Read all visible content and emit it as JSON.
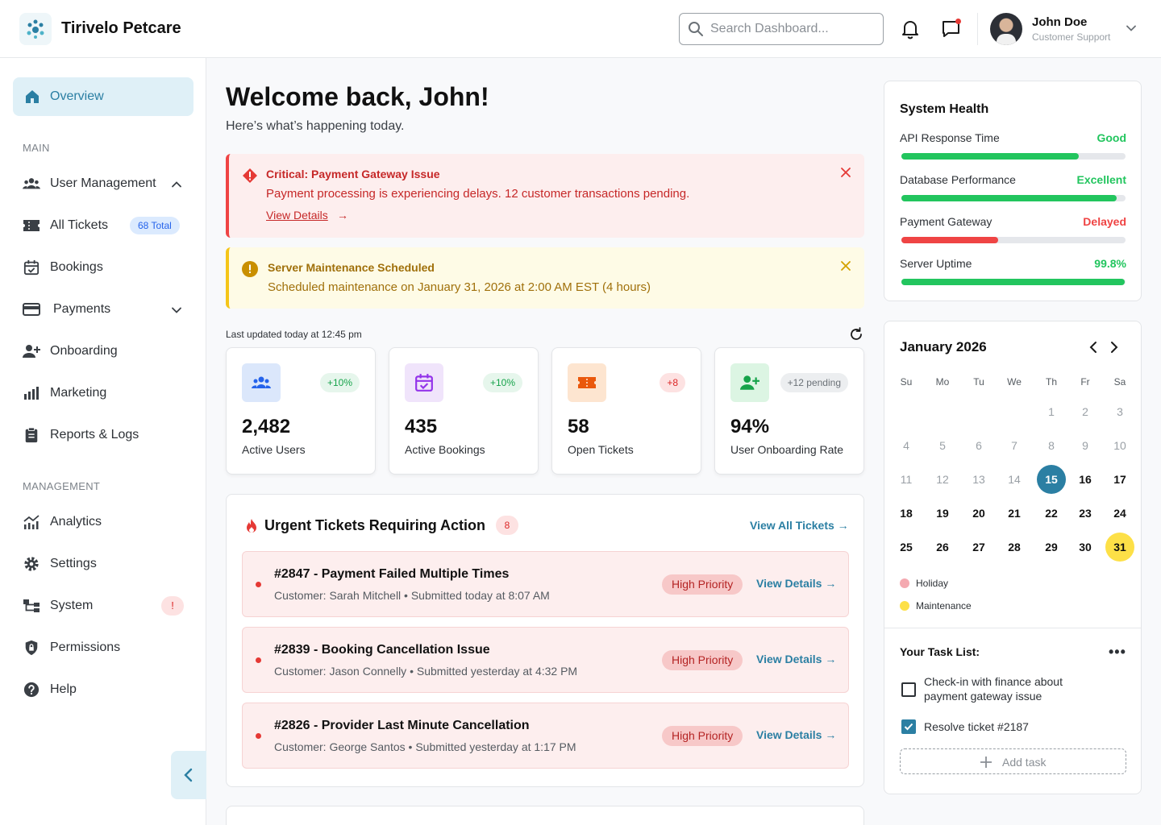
{
  "header": {
    "brand": "Tirivelo Petcare",
    "search_placeholder": "Search Dashboard...",
    "user_name": "John Doe",
    "user_role": "Customer Support"
  },
  "sidebar": {
    "overview": "Overview",
    "section_main": "MAIN",
    "section_management": "MANAGEMENT",
    "items_main": [
      {
        "label": "User Management",
        "icon": "users-icon"
      },
      {
        "label": "All Tickets",
        "icon": "ticket-icon",
        "badge": "68 Total"
      },
      {
        "label": "Bookings",
        "icon": "calendar-check-icon"
      },
      {
        "label": "Payments",
        "icon": "credit-card-icon"
      },
      {
        "label": "Onboarding",
        "icon": "user-plus-icon"
      },
      {
        "label": "Marketing",
        "icon": "bar-chart-icon"
      },
      {
        "label": "Reports & Logs",
        "icon": "clipboard-icon"
      }
    ],
    "items_management": [
      {
        "label": "Analytics",
        "icon": "analytics-icon"
      },
      {
        "label": "Settings",
        "icon": "gear-icon"
      },
      {
        "label": "System",
        "icon": "system-icon",
        "badge": "!"
      },
      {
        "label": "Permissions",
        "icon": "shield-lock-icon"
      },
      {
        "label": "Help",
        "icon": "help-icon"
      }
    ]
  },
  "main": {
    "welcome": "Welcome back, John!",
    "subtitle": "Here’s what’s happening today.",
    "alert_critical": {
      "title": "Critical: Payment Gateway Issue",
      "message": "Payment processing is experiencing delays. 12 customer transactions pending.",
      "link": "View Details",
      "arrow": "→"
    },
    "alert_maintenance": {
      "title": "Server Maintenance Scheduled",
      "message": "Scheduled maintenance on January 31, 2026 at 2:00 AM EST (4 hours)"
    },
    "last_updated": "Last updated today at 12:45 pm",
    "stats": [
      {
        "value": "2,482",
        "label": "Active Users",
        "change": "+10%",
        "icon": "users-icon"
      },
      {
        "value": "435",
        "label": "Active Bookings",
        "change": "+10%",
        "icon": "calendar-check-icon"
      },
      {
        "value": "58",
        "label": "Open Tickets",
        "change": "+8",
        "icon": "ticket-icon"
      },
      {
        "value": "94%",
        "label": "User Onboarding Rate",
        "change": "+12 pending",
        "icon": "user-plus-icon"
      }
    ],
    "urgent": {
      "title": "Urgent Tickets Requiring Action",
      "count": "8",
      "view_all": "View All Tickets →",
      "tickets": [
        {
          "title": "#2847 - Payment Failed Multiple Times",
          "meta": "Customer: Sarah Mitchell • Submitted today at 8:07 AM",
          "priority": "High Priority",
          "link": "View Details →"
        },
        {
          "title": "#2839 - Booking Cancellation Issue",
          "meta": "Customer: Jason Connelly • Submitted yesterday at 4:32 PM",
          "priority": "High Priority",
          "link": "View Details →"
        },
        {
          "title": "#2826 - Provider Last Minute Cancellation",
          "meta": "Customer: George Santos • Submitted yesterday at 1:17 PM",
          "priority": "High Priority",
          "link": "View Details →"
        }
      ]
    }
  },
  "health": {
    "title": "System Health",
    "metrics": [
      {
        "label": "API Response Time",
        "status": "Good",
        "level": 0.79,
        "color": "#22c55e"
      },
      {
        "label": "Database Performance",
        "status": "Excellent",
        "level": 0.96,
        "color": "#22c55e"
      },
      {
        "label": "Payment Gateway",
        "status": "Delayed",
        "level": 0.43,
        "color": "#ef4444"
      },
      {
        "label": "Server Uptime",
        "status": "99.8%",
        "level": 0.998,
        "color": "#22c55e"
      }
    ]
  },
  "calendar": {
    "title": "January 2026",
    "weekdays": [
      "Su",
      "Mo",
      "Tu",
      "We",
      "Th",
      "Fr",
      "Sa"
    ],
    "first_weekday": 4,
    "days_in_month": 31,
    "today": 15,
    "past_until": 15,
    "maintenance_day": 31,
    "legend": [
      {
        "label": "Holiday",
        "color": "#f4a9b0"
      },
      {
        "label": "Maintenance",
        "color": "#fde047"
      }
    ]
  },
  "tasks": {
    "title": "Your Task List:",
    "items": [
      {
        "text": "Check-in with finance about payment gateway issue",
        "done": false
      },
      {
        "text": "Resolve ticket #2187",
        "done": true
      }
    ],
    "add_label": "Add task"
  },
  "colors": {
    "accent": "#2b7fa3",
    "critical": "#ef4444",
    "warning": "#f5c518",
    "success": "#22c55e"
  }
}
